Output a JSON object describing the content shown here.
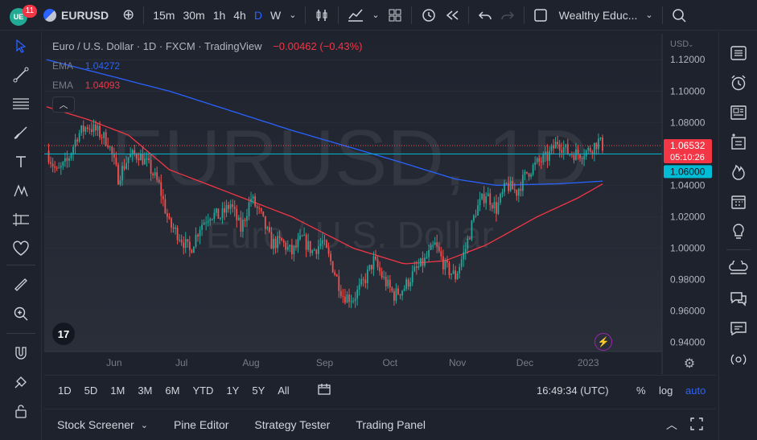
{
  "topbar": {
    "badge_count": "11",
    "symbol": "EURUSD",
    "intervals": [
      "15m",
      "30m",
      "1h",
      "4h",
      "D",
      "W"
    ],
    "active_interval": "D",
    "layout_name": "Wealthy Educ..."
  },
  "legend": {
    "title": "Euro / U.S. Dollar · 1D · FXCM · TradingView",
    "change": "−0.00462 (−0.43%)",
    "ema1_label": "EMA",
    "ema1_value": "1.04272",
    "ema2_label": "EMA",
    "ema2_value": "1.04093"
  },
  "watermark": {
    "symbol": "EURUSD, 1D",
    "name": "Euro / U.S. Dollar"
  },
  "colors": {
    "up": "#26a69a",
    "down": "#ef5350",
    "ema_blue": "#2962ff",
    "ema_red": "#f23645",
    "horizontal_line": "#00bcd4"
  },
  "chart_data": {
    "type": "candlestick",
    "currency": "USD",
    "y_ticks": [
      "1.12000",
      "1.10000",
      "1.08000",
      "1.06000",
      "1.04000",
      "1.02000",
      "1.00000",
      "0.98000",
      "0.96000",
      "0.94000"
    ],
    "ylim": [
      0.9342,
      1.1365
    ],
    "x_ticks": [
      "Jun",
      "Jul",
      "Aug",
      "Sep",
      "Oct",
      "Nov",
      "Dec",
      "2023"
    ],
    "last_price": "1.06532",
    "countdown": "05:10:26",
    "horizontal_level": "1.06000",
    "close_path": [
      [
        0,
        1.062
      ],
      [
        5,
        1.048
      ],
      [
        10,
        1.055
      ],
      [
        15,
        1.072
      ],
      [
        20,
        1.078
      ],
      [
        25,
        1.074
      ],
      [
        30,
        1.068
      ],
      [
        35,
        1.045
      ],
      [
        40,
        1.058
      ],
      [
        45,
        1.06
      ],
      [
        50,
        1.052
      ],
      [
        55,
        1.04
      ],
      [
        60,
        1.015
      ],
      [
        65,
        1.008
      ],
      [
        70,
        0.998
      ],
      [
        75,
        1.014
      ],
      [
        80,
        1.022
      ],
      [
        85,
        1.02
      ],
      [
        90,
        1.028
      ],
      [
        95,
        1.012
      ],
      [
        100,
        1.032
      ],
      [
        105,
        1.02
      ],
      [
        110,
        1.003
      ],
      [
        115,
        1.004
      ],
      [
        120,
        0.997
      ],
      [
        125,
        1.006
      ],
      [
        130,
        0.998
      ],
      [
        135,
        1.004
      ],
      [
        140,
        0.988
      ],
      [
        145,
        0.97
      ],
      [
        150,
        0.968
      ],
      [
        155,
        0.978
      ],
      [
        160,
        0.992
      ],
      [
        165,
        0.98
      ],
      [
        170,
        0.97
      ],
      [
        175,
        0.975
      ],
      [
        180,
        0.985
      ],
      [
        185,
        0.992
      ],
      [
        190,
        1.002
      ],
      [
        195,
        0.988
      ],
      [
        200,
        0.982
      ],
      [
        205,
        1.0
      ],
      [
        210,
        1.024
      ],
      [
        215,
        1.035
      ],
      [
        220,
        1.025
      ],
      [
        225,
        1.04
      ],
      [
        230,
        1.036
      ],
      [
        235,
        1.048
      ],
      [
        240,
        1.054
      ],
      [
        245,
        1.058
      ],
      [
        250,
        1.068
      ],
      [
        255,
        1.061
      ],
      [
        260,
        1.06
      ],
      [
        265,
        1.062
      ],
      [
        270,
        1.068
      ],
      [
        272,
        1.065
      ]
    ],
    "ema_blue_path": [
      [
        0,
        1.12
      ],
      [
        60,
        1.1
      ],
      [
        120,
        1.075
      ],
      [
        170,
        1.056
      ],
      [
        200,
        1.044
      ],
      [
        220,
        1.04
      ],
      [
        250,
        1.041
      ],
      [
        272,
        1.0427
      ]
    ],
    "ema_red_path": [
      [
        0,
        1.09
      ],
      [
        20,
        1.082
      ],
      [
        40,
        1.072
      ],
      [
        60,
        1.05
      ],
      [
        90,
        1.035
      ],
      [
        120,
        1.02
      ],
      [
        150,
        1.0
      ],
      [
        175,
        0.99
      ],
      [
        195,
        0.992
      ],
      [
        215,
        1.002
      ],
      [
        240,
        1.02
      ],
      [
        260,
        1.032
      ],
      [
        272,
        1.0409
      ]
    ]
  },
  "bottom": {
    "ranges": [
      "1D",
      "5D",
      "1M",
      "3M",
      "6M",
      "YTD",
      "1Y",
      "5Y",
      "All"
    ],
    "clock": "16:49:34 (UTC)",
    "pct": "%",
    "log": "log",
    "auto": "auto",
    "tabs": [
      "Stock Screener",
      "Pine Editor",
      "Strategy Tester",
      "Trading Panel"
    ]
  }
}
